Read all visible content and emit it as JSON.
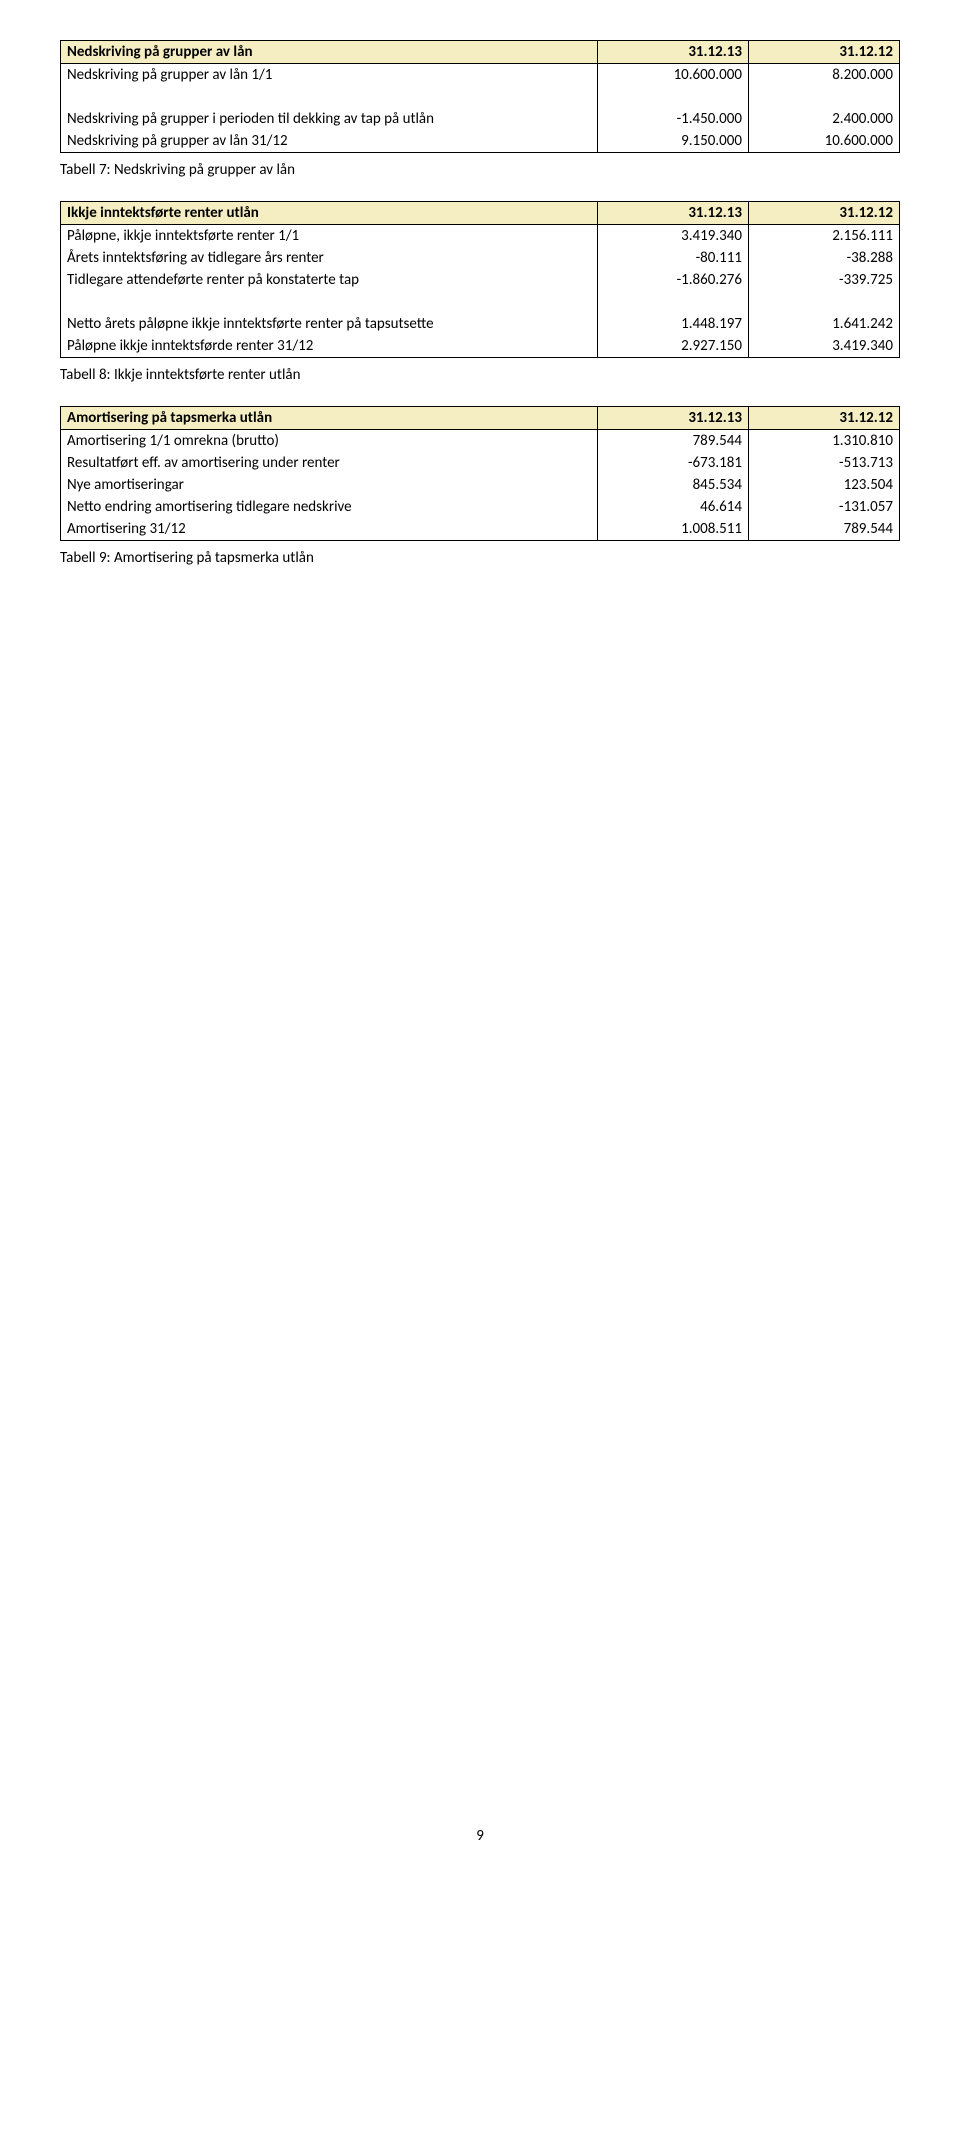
{
  "t1": {
    "header": {
      "label": "Nedskriving på grupper av lån",
      "c1": "31.12.13",
      "c2": "31.12.12"
    },
    "rows": [
      {
        "label": "Nedskriving på grupper av lån 1/1",
        "c1": "10.600.000",
        "c2": "8.200.000"
      },
      {
        "label": "",
        "c1": "",
        "c2": ""
      },
      {
        "label": "Nedskriving på grupper i perioden til dekking av tap på utlån",
        "c1": "-1.450.000",
        "c2": "2.400.000"
      },
      {
        "label": "Nedskriving på grupper av lån 31/12",
        "c1": "9.150.000",
        "c2": "10.600.000"
      }
    ],
    "caption": "Tabell 7: Nedskriving på grupper av lån"
  },
  "t2": {
    "header": {
      "label": "Ikkje inntektsførte renter utlån",
      "c1": "31.12.13",
      "c2": "31.12.12"
    },
    "rows": [
      {
        "label": "Påløpne, ikkje inntektsførte renter 1/1",
        "c1": "3.419.340",
        "c2": "2.156.111"
      },
      {
        "label": "Årets inntektsføring av tidlegare års renter",
        "c1": "-80.111",
        "c2": "-38.288"
      },
      {
        "label": "Tidlegare attendeførte renter på konstaterte tap",
        "c1": "-1.860.276",
        "c2": "-339.725"
      },
      {
        "label": "",
        "c1": "",
        "c2": ""
      },
      {
        "label": "Netto årets påløpne ikkje inntektsførte renter på tapsutsette",
        "c1": "1.448.197",
        "c2": "1.641.242"
      },
      {
        "label": "Påløpne ikkje inntektsførde renter 31/12",
        "c1": "2.927.150",
        "c2": "3.419.340"
      }
    ],
    "caption": "Tabell 8: Ikkje inntektsførte renter utlån"
  },
  "t3": {
    "header": {
      "label": "Amortisering på tapsmerka utlån",
      "c1": "31.12.13",
      "c2": "31.12.12"
    },
    "rows": [
      {
        "label": "Amortisering 1/1 omrekna (brutto)",
        "c1": "789.544",
        "c2": "1.310.810"
      },
      {
        "label": "Resultatført eff. av amortisering under renter",
        "c1": "-673.181",
        "c2": "-513.713"
      },
      {
        "label": "Nye amortiseringar",
        "c1": "845.534",
        "c2": "123.504"
      },
      {
        "label": "Netto endring amortisering tidlegare nedskrive",
        "c1": "46.614",
        "c2": "-131.057"
      },
      {
        "label": "Amortisering 31/12",
        "c1": "1.008.511",
        "c2": "789.544"
      }
    ],
    "caption": "Tabell 9: Amortisering på tapsmerka utlån"
  },
  "page": "9"
}
